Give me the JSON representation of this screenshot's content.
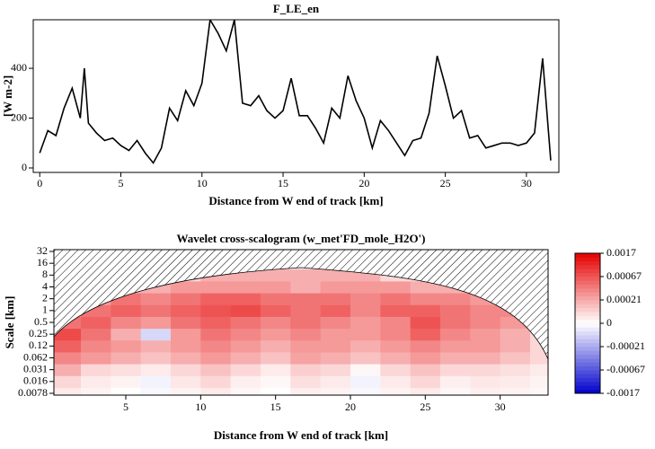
{
  "chart_data": [
    {
      "type": "line",
      "title": "F_LE_en",
      "x_label": "Distance from W end of track [km]",
      "y_label": "[W m-2]",
      "x": [
        0,
        0.5,
        1,
        1.5,
        2,
        2.5,
        2.75,
        3,
        3.5,
        4,
        4.5,
        5,
        5.5,
        6,
        6.5,
        7,
        7.5,
        8,
        8.5,
        9,
        9.5,
        10,
        10.5,
        11,
        11.5,
        12,
        12.5,
        13,
        13.5,
        14,
        14.5,
        15,
        15.5,
        16,
        16.5,
        17,
        17.5,
        18,
        18.5,
        19,
        19.5,
        20,
        20.5,
        21,
        21.5,
        22,
        22.5,
        23,
        23.5,
        24,
        24.5,
        25,
        25.5,
        26,
        26.5,
        27,
        27.5,
        28,
        28.5,
        29,
        29.5,
        30,
        30.5,
        31,
        31.5
      ],
      "series": [
        {
          "color": "#000000",
          "values": [
            60,
            150,
            130,
            240,
            320,
            200,
            400,
            180,
            140,
            110,
            120,
            90,
            70,
            110,
            60,
            20,
            80,
            240,
            190,
            310,
            250,
            340,
            595,
            540,
            470,
            595,
            260,
            250,
            290,
            230,
            200,
            230,
            360,
            210,
            210,
            160,
            100,
            240,
            200,
            370,
            270,
            200,
            80,
            190,
            150,
            100,
            50,
            110,
            120,
            220,
            450,
            330,
            200,
            230,
            120,
            130,
            80,
            90,
            100,
            100,
            90,
            100,
            140,
            440,
            30
          ]
        }
      ],
      "xlim": [
        -0.4,
        32
      ],
      "ylim": [
        -18,
        595
      ],
      "xticks": [
        0,
        5,
        10,
        15,
        20,
        25,
        30
      ],
      "yticks": [
        0,
        200,
        400
      ]
    },
    {
      "type": "heatmap",
      "title": "Wavelet cross-scalogram (w_met'FD_mole_H2O')",
      "x_label": "Distance from W end of track [km]",
      "y_label": "Scale [km]",
      "log_y": true,
      "x": [
        1,
        3,
        5,
        7,
        9,
        11,
        13,
        15,
        17,
        19,
        21,
        23,
        25,
        27,
        29,
        31,
        33
      ],
      "y": [
        0.0078125,
        0.015625,
        0.03125,
        0.0625,
        0.125,
        0.25,
        0.5,
        1,
        2,
        4,
        8
      ],
      "z": [
        [
          5e-05,
          3e-05,
          0,
          -2e-05,
          3e-05,
          5e-05,
          2e-05,
          0,
          4e-05,
          3e-05,
          -2e-05,
          3e-05,
          5e-05,
          2e-05,
          4e-05,
          3e-05,
          2e-05
        ],
        [
          0.0001,
          5e-05,
          3e-05,
          -3e-05,
          6e-05,
          0.0001,
          4e-05,
          2e-05,
          8e-05,
          5e-05,
          -3e-05,
          5e-05,
          0.0001,
          4e-05,
          6e-05,
          5e-05,
          3e-05
        ],
        [
          0.0002,
          0.0001,
          8e-05,
          5e-05,
          0.0001,
          0.00015,
          0.0001,
          5e-05,
          0.00012,
          0.0001,
          2e-05,
          0.0001,
          0.00015,
          0.0001,
          0.0001,
          8e-05,
          5e-05
        ],
        [
          0.0004,
          0.0003,
          0.0002,
          0.00015,
          0.0002,
          0.0003,
          0.0002,
          0.00015,
          0.00025,
          0.0002,
          0.00015,
          0.0002,
          0.0003,
          0.0002,
          0.0002,
          0.00015,
          0.0001
        ],
        [
          0.0006,
          0.0004,
          0.0003,
          0.0002,
          0.0003,
          0.0004,
          0.0003,
          0.0002,
          0.0003,
          0.0003,
          0.0002,
          0.0003,
          0.0004,
          0.0003,
          0.0003,
          0.0002,
          0.0001
        ],
        [
          0.0008,
          0.0005,
          0.0002,
          -0.0001,
          0.0003,
          0.0005,
          0.0004,
          0.0003,
          0.0004,
          0.0003,
          0.0003,
          0.0004,
          0.0006,
          0.0004,
          0.0003,
          0.0002,
          0.0001
        ],
        [
          0.0005,
          0.0006,
          0.0004,
          0.0003,
          0.0005,
          0.0006,
          0.0005,
          0.0004,
          0.0005,
          0.0004,
          0.0003,
          0.0004,
          0.0007,
          0.0005,
          0.0004,
          0.0003,
          0.0002
        ],
        [
          0.0003,
          0.0005,
          0.0006,
          0.0005,
          0.0006,
          0.0007,
          0.0008,
          0.0006,
          0.0005,
          0.0006,
          0.0004,
          0.0006,
          0.0006,
          0.0005,
          0.0004,
          0.0004,
          0.0002
        ],
        [
          0.0002,
          0.0003,
          0.0005,
          0.0004,
          0.0005,
          0.0006,
          0.0006,
          0.0005,
          0.0005,
          0.0005,
          0.0004,
          0.0005,
          0.0004,
          0.0004,
          0.0003,
          0.0002,
          0.0001
        ],
        [
          0.0001,
          0.0002,
          0.0002,
          0.0002,
          0.0003,
          0.0003,
          0.0003,
          0.0003,
          0.0002,
          0.0003,
          0.0003,
          0.0003,
          0.0002,
          0.0002,
          0.0002,
          0.0001,
          0.0001
        ],
        [
          0.0001,
          0.0001,
          0.0001,
          0.0001,
          0.0001,
          0.0002,
          0.0002,
          0.0002,
          0.0002,
          0.0002,
          0.0002,
          0.0001,
          0.0001,
          0.0001,
          0.0001,
          0.0001,
          0.0001
        ]
      ],
      "xlim": [
        0.2,
        33.2
      ],
      "ylim": [
        0.0078125,
        32
      ],
      "xticks": [
        5,
        10,
        15,
        20,
        25,
        30
      ],
      "yticks": [
        32,
        16,
        8,
        4,
        2,
        1,
        0.5,
        0.25,
        {
          "value": 0.125,
          "label": "0.12"
        },
        {
          "value": 0.0625,
          "label": "0.062"
        },
        {
          "value": 0.03125,
          "label": "0.031"
        },
        {
          "value": 0.015625,
          "label": "0.016"
        },
        {
          "value": 0.0078125,
          "label": "0.0078"
        }
      ],
      "colorscale": [
        "#0000cc",
        "#ffffff",
        "#e60000"
      ],
      "colorbar_ticks": [
        0.0017,
        0.00067,
        0.00021,
        0,
        -0.00021,
        -0.00067,
        -0.0017
      ]
    }
  ]
}
